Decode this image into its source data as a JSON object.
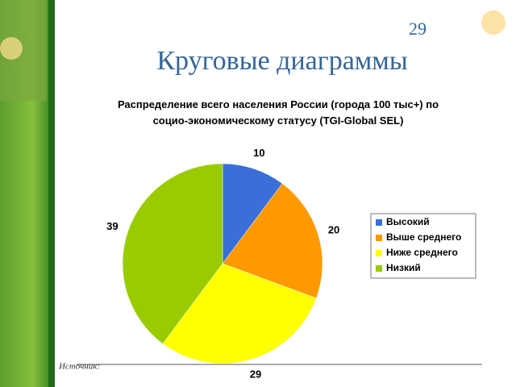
{
  "page_number": "29",
  "slide_title": "Круговые диаграммы",
  "source_label": "Источник:",
  "chart_data": {
    "type": "pie",
    "title": "Распределение всего населения России (города 100 тыс+) по\nсоцио-экономическому статусу (TGI-Global SEL)",
    "categories": [
      "Высокий",
      "Выше среднего",
      "Ниже среднего",
      "Низкий"
    ],
    "values": [
      10,
      20,
      29,
      39
    ],
    "colors": [
      "#3a6fd8",
      "#ff9900",
      "#ffff00",
      "#99cc00"
    ],
    "legend": "right"
  }
}
